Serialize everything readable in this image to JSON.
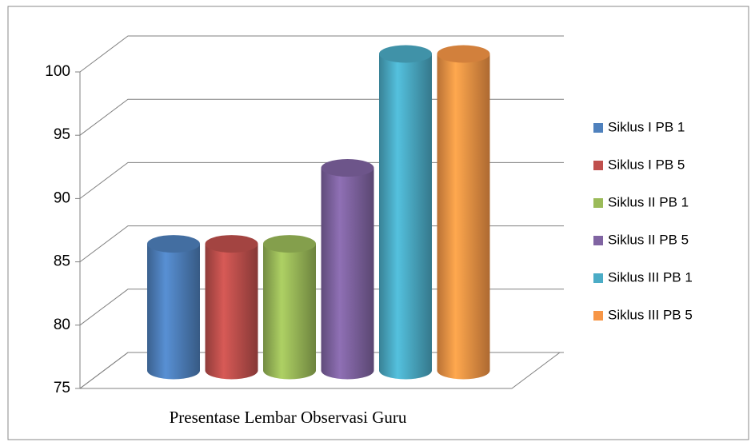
{
  "chart_data": {
    "type": "bar3d-cylinder",
    "categories": [
      "Presentase Lembar Observasi Guru"
    ],
    "series": [
      {
        "name": "Siklus I PB 1",
        "color": "#4f81bd",
        "values": [
          85
        ]
      },
      {
        "name": "Siklus I PB 5",
        "color": "#c0504d",
        "values": [
          85
        ]
      },
      {
        "name": "Siklus II PB 1",
        "color": "#9bbb59",
        "values": [
          85
        ]
      },
      {
        "name": "Siklus II PB 5",
        "color": "#8064a2",
        "values": [
          91
        ]
      },
      {
        "name": "Siklus III PB 1",
        "color": "#4bacc6",
        "values": [
          100
        ]
      },
      {
        "name": "Siklus III PB 5",
        "color": "#f79646",
        "values": [
          100
        ]
      }
    ],
    "ylim": [
      75,
      100
    ],
    "yticks": [
      75,
      80,
      85,
      90,
      95,
      100
    ],
    "grid": true,
    "legend": "right"
  }
}
